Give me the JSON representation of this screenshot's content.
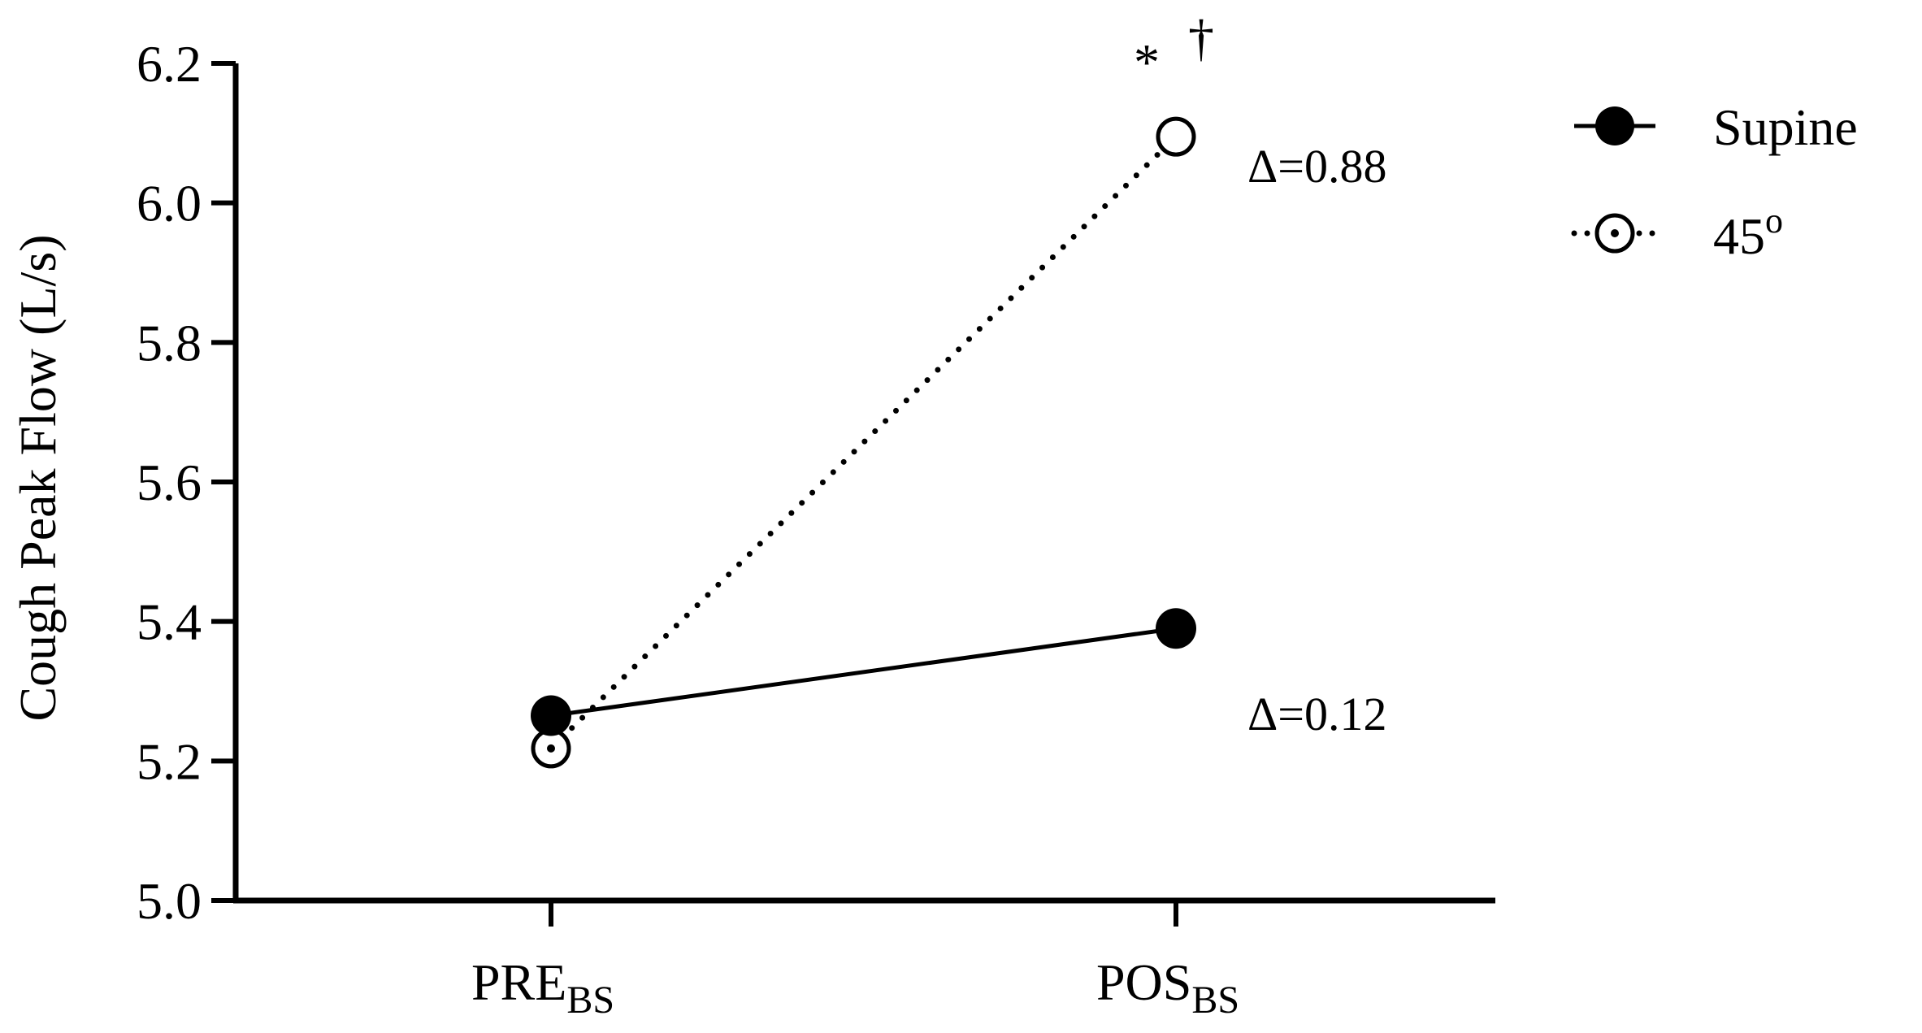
{
  "chart_data": {
    "type": "line",
    "title": "",
    "ylabel": "Cough Peak Flow (L/s)",
    "xlabel": "",
    "ylim": [
      5.0,
      6.2
    ],
    "yticks": [
      "5.0",
      "5.2",
      "5.4",
      "5.6",
      "5.8",
      "6.0",
      "6.2"
    ],
    "categories": [
      {
        "main": "PRE",
        "sub": "BS"
      },
      {
        "main": "POS",
        "sub": "BS"
      }
    ],
    "series": [
      {
        "name": "Supine",
        "values": [
          5.265,
          5.39
        ],
        "line": "solid",
        "marker": "filled-circle"
      },
      {
        "name": "45",
        "name_sup": "o",
        "values": [
          5.218,
          6.095
        ],
        "line": "dotted",
        "marker": "open-circle"
      }
    ],
    "annotations": [
      {
        "text": "Δ=0.88",
        "series": "45"
      },
      {
        "text": "Δ=0.12",
        "series": "Supine"
      }
    ],
    "significance": {
      "text1": "*",
      "text2": "†",
      "category": 1
    },
    "legend": "top-right",
    "grid": false,
    "colors": {
      "line": "#000000",
      "marker_fill": "#000000",
      "open_fill": "#ffffff"
    }
  }
}
